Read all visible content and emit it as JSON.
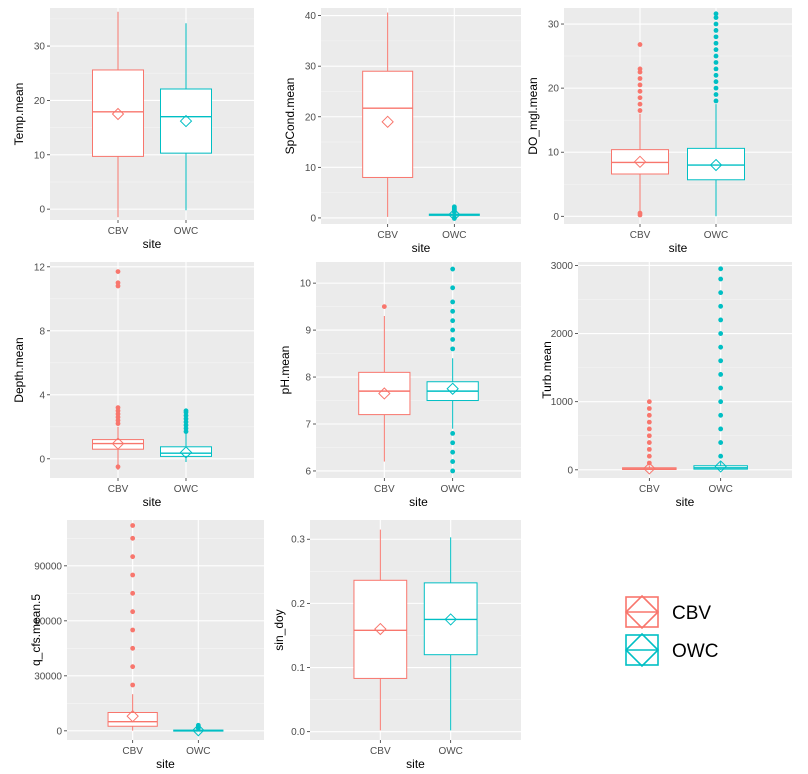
{
  "colors": {
    "CBV": "#F8766D",
    "OWC": "#00BFC4"
  },
  "legend": {
    "items": [
      "CBV",
      "OWC"
    ],
    "placement": "bottom-right"
  },
  "chart_data": [
    {
      "type": "box",
      "xlabel": "site",
      "ylabel": "Temp.mean",
      "categories": [
        "CBV",
        "OWC"
      ],
      "ylim": [
        -2,
        37
      ],
      "yticks": [
        0,
        10,
        20,
        30
      ],
      "ytick_labels": [
        "0",
        "10",
        "20",
        "30"
      ],
      "grid": true,
      "series": [
        {
          "name": "CBV",
          "whisker_low": -1.5,
          "q1": 9.7,
          "median": 17.9,
          "q3": 25.6,
          "whisker_high": 36.3,
          "mean": 17.5,
          "outliers": []
        },
        {
          "name": "OWC",
          "whisker_low": -0.2,
          "q1": 10.3,
          "median": 17.0,
          "q3": 22.1,
          "whisker_high": 34.2,
          "mean": 16.2,
          "outliers": []
        }
      ]
    },
    {
      "type": "box",
      "xlabel": "site",
      "ylabel": "SpCond.mean",
      "categories": [
        "CBV",
        "OWC"
      ],
      "ylim": [
        -1.2,
        41.5
      ],
      "yticks": [
        0,
        10,
        20,
        30,
        40
      ],
      "ytick_labels": [
        "0",
        "10",
        "20",
        "30",
        "40"
      ],
      "grid": true,
      "series": [
        {
          "name": "CBV",
          "whisker_low": 0.2,
          "q1": 8.0,
          "median": 21.7,
          "q3": 29.0,
          "whisker_high": 40.6,
          "mean": 19.0,
          "outliers": []
        },
        {
          "name": "OWC",
          "whisker_low": 0.3,
          "q1": 0.5,
          "median": 0.62,
          "q3": 0.75,
          "whisker_high": 1.0,
          "mean": 0.65,
          "outliers": [
            1.2,
            1.4,
            1.6,
            1.8,
            2.0,
            2.2,
            0.05,
            -0.1
          ]
        }
      ]
    },
    {
      "type": "box",
      "xlabel": "site",
      "ylabel": "DO_mgl.mean",
      "categories": [
        "CBV",
        "OWC"
      ],
      "ylim": [
        -1.2,
        32.5
      ],
      "yticks": [
        0,
        10,
        20,
        30
      ],
      "ytick_labels": [
        "0",
        "10",
        "20",
        "30"
      ],
      "grid": true,
      "series": [
        {
          "name": "CBV",
          "whisker_low": 0.8,
          "q1": 6.6,
          "median": 8.4,
          "q3": 10.4,
          "whisker_high": 16.0,
          "mean": 8.5,
          "outliers": [
            16.5,
            17.5,
            18.5,
            19.5,
            20.5,
            21.5,
            22.5,
            23.0,
            26.8,
            0.5,
            0.2
          ]
        },
        {
          "name": "OWC",
          "whisker_low": 0.0,
          "q1": 5.7,
          "median": 8.0,
          "q3": 10.6,
          "whisker_high": 17.5,
          "mean": 8.0,
          "outliers": [
            18,
            19,
            20,
            21,
            22,
            23,
            24,
            25,
            26,
            27,
            28,
            29,
            30,
            31,
            31.6
          ]
        }
      ]
    },
    {
      "type": "box",
      "xlabel": "site",
      "ylabel": "Depth.mean",
      "categories": [
        "CBV",
        "OWC"
      ],
      "ylim": [
        -1.2,
        12.3
      ],
      "yticks": [
        0,
        4,
        8,
        12
      ],
      "ytick_labels": [
        "0",
        "4",
        "8",
        "12"
      ],
      "grid": true,
      "series": [
        {
          "name": "CBV",
          "whisker_low": -0.7,
          "q1": 0.6,
          "median": 0.95,
          "q3": 1.2,
          "whisker_high": 2.0,
          "mean": 0.95,
          "outliers": [
            2.2,
            2.4,
            2.6,
            2.8,
            3.0,
            3.2,
            -0.5,
            10.8,
            11.0,
            11.7
          ]
        },
        {
          "name": "OWC",
          "whisker_low": -0.2,
          "q1": 0.15,
          "median": 0.35,
          "q3": 0.75,
          "whisker_high": 1.6,
          "mean": 0.4,
          "outliers": [
            1.7,
            1.9,
            2.1,
            2.3,
            2.5,
            2.7,
            2.9,
            3.0
          ]
        }
      ]
    },
    {
      "type": "box",
      "xlabel": "site",
      "ylabel": "pH.mean",
      "categories": [
        "CBV",
        "OWC"
      ],
      "ylim": [
        5.85,
        10.45
      ],
      "yticks": [
        6,
        7,
        8,
        9,
        10
      ],
      "ytick_labels": [
        "6",
        "7",
        "8",
        "9",
        "10"
      ],
      "grid": true,
      "series": [
        {
          "name": "CBV",
          "whisker_low": 6.2,
          "q1": 7.2,
          "median": 7.7,
          "q3": 8.1,
          "whisker_high": 9.3,
          "mean": 7.65,
          "outliers": [
            9.5
          ]
        },
        {
          "name": "OWC",
          "whisker_low": 6.9,
          "q1": 7.5,
          "median": 7.7,
          "q3": 7.9,
          "whisker_high": 8.4,
          "mean": 7.75,
          "outliers": [
            8.6,
            8.8,
            9.0,
            9.2,
            9.4,
            9.6,
            9.9,
            10.3,
            6.8,
            6.6,
            6.4,
            6.2,
            6.0
          ]
        }
      ]
    },
    {
      "type": "box",
      "xlabel": "site",
      "ylabel": "Turb.mean",
      "categories": [
        "CBV",
        "OWC"
      ],
      "ylim": [
        -120,
        3050
      ],
      "yticks": [
        0,
        1000,
        2000,
        3000
      ],
      "ytick_labels": [
        "0",
        "1000",
        "2000",
        "3000"
      ],
      "grid": true,
      "series": [
        {
          "name": "CBV",
          "whisker_low": 0,
          "q1": 5,
          "median": 15,
          "q3": 30,
          "whisker_high": 60,
          "mean": 20,
          "outliers": [
            100,
            200,
            300,
            400,
            500,
            600,
            700,
            800,
            900,
            1000
          ]
        },
        {
          "name": "OWC",
          "whisker_low": 0,
          "q1": 10,
          "median": 30,
          "q3": 60,
          "whisker_high": 120,
          "mean": 50,
          "outliers": [
            200,
            400,
            600,
            800,
            1000,
            1200,
            1400,
            1600,
            1800,
            2000,
            2200,
            2400,
            2600,
            2800,
            2950
          ]
        }
      ]
    },
    {
      "type": "box",
      "xlabel": "site",
      "ylabel": "q_cfs.mean.5",
      "categories": [
        "CBV",
        "OWC"
      ],
      "ylim": [
        -5000,
        115000
      ],
      "yticks": [
        0,
        30000,
        60000,
        90000
      ],
      "ytick_labels": [
        "0",
        "30000",
        "60000",
        "90000"
      ],
      "grid": true,
      "series": [
        {
          "name": "CBV",
          "whisker_low": 100,
          "q1": 2500,
          "median": 5000,
          "q3": 10000,
          "whisker_high": 20000,
          "mean": 8000,
          "outliers": [
            25000,
            35000,
            45000,
            55000,
            65000,
            75000,
            85000,
            95000,
            105000,
            112000
          ]
        },
        {
          "name": "OWC",
          "whisker_low": 0,
          "q1": 50,
          "median": 150,
          "q3": 400,
          "whisker_high": 900,
          "mean": 300,
          "outliers": [
            1500,
            2200,
            3000
          ]
        }
      ]
    },
    {
      "type": "box",
      "xlabel": "site",
      "ylabel": "sin_doy",
      "categories": [
        "CBV",
        "OWC"
      ],
      "ylim": [
        -0.013,
        0.33
      ],
      "yticks": [
        0.0,
        0.1,
        0.2,
        0.3
      ],
      "ytick_labels": [
        "0.0",
        "0.1",
        "0.2",
        "0.3"
      ],
      "grid": true,
      "series": [
        {
          "name": "CBV",
          "whisker_low": 0.002,
          "q1": 0.083,
          "median": 0.158,
          "q3": 0.236,
          "whisker_high": 0.315,
          "mean": 0.16,
          "outliers": []
        },
        {
          "name": "OWC",
          "whisker_low": 0.002,
          "q1": 0.12,
          "median": 0.175,
          "q3": 0.232,
          "whisker_high": 0.303,
          "mean": 0.175,
          "outliers": []
        }
      ]
    }
  ]
}
